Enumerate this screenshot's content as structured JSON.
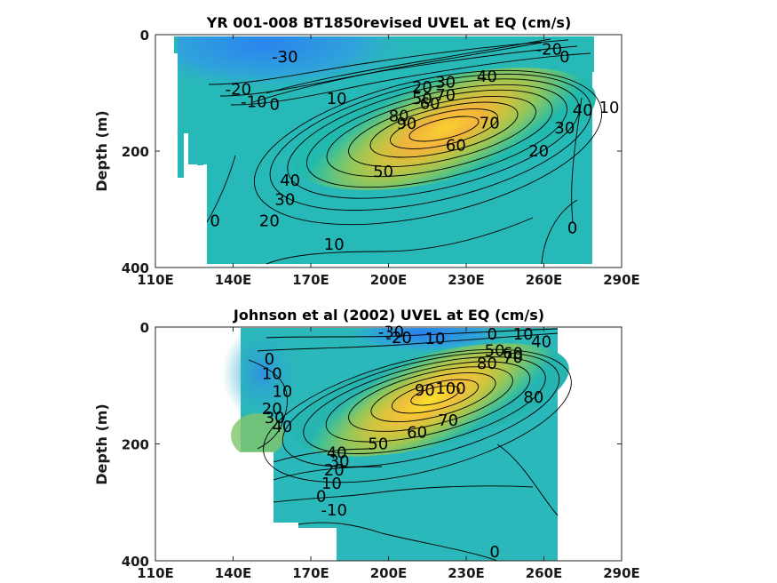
{
  "chart_data": [
    {
      "type": "contour",
      "title": "YR 001-008 BT1850revised UVEL at EQ (cm/s)",
      "xlabel": "",
      "ylabel": "Depth (m)",
      "xlim": [
        110,
        290
      ],
      "ylim": [
        400,
        0
      ],
      "xticks": [
        "110E",
        "140E",
        "170E",
        "200E",
        "230E",
        "260E",
        "290E"
      ],
      "yticks": [
        "0",
        "200",
        "400"
      ],
      "data_extent_lon": [
        117,
        280
      ],
      "core": {
        "lon": 227,
        "depth": 125,
        "value": 90
      },
      "contour_labels": [
        {
          "text": "-30",
          "lon": 160,
          "depth": 38
        },
        {
          "text": "-20",
          "lon": 142,
          "depth": 94
        },
        {
          "text": "-10",
          "lon": 148,
          "depth": 115
        },
        {
          "text": "0",
          "lon": 156,
          "depth": 120
        },
        {
          "text": "10",
          "lon": 180,
          "depth": 110
        },
        {
          "text": "20",
          "lon": 213,
          "depth": 90
        },
        {
          "text": "30",
          "lon": 222,
          "depth": 82
        },
        {
          "text": "40",
          "lon": 238,
          "depth": 72
        },
        {
          "text": "50",
          "lon": 213,
          "depth": 110
        },
        {
          "text": "60",
          "lon": 216,
          "depth": 118
        },
        {
          "text": "70",
          "lon": 222,
          "depth": 104
        },
        {
          "text": "80",
          "lon": 204,
          "depth": 140
        },
        {
          "text": "90",
          "lon": 207,
          "depth": 153
        },
        {
          "text": "70",
          "lon": 239,
          "depth": 152
        },
        {
          "text": "60",
          "lon": 226,
          "depth": 190
        },
        {
          "text": "50",
          "lon": 198,
          "depth": 235
        },
        {
          "text": "40",
          "lon": 275,
          "depth": 130
        },
        {
          "text": "30",
          "lon": 268,
          "depth": 160
        },
        {
          "text": "20",
          "lon": 258,
          "depth": 200
        },
        {
          "text": "10",
          "lon": 286,
          "depth": 125
        },
        {
          "text": "-20",
          "lon": 262,
          "depth": 25
        },
        {
          "text": "0",
          "lon": 268,
          "depth": 38
        },
        {
          "text": "40",
          "lon": 162,
          "depth": 250
        },
        {
          "text": "30",
          "lon": 160,
          "depth": 283
        },
        {
          "text": "20",
          "lon": 154,
          "depth": 320
        },
        {
          "text": "0",
          "lon": 133,
          "depth": 320
        },
        {
          "text": "10",
          "lon": 179,
          "depth": 360
        },
        {
          "text": "0",
          "lon": 271,
          "depth": 332
        }
      ]
    },
    {
      "type": "contour",
      "title": "Johnson et al (2002) UVEL at EQ (cm/s)",
      "xlabel": "",
      "ylabel": "Depth (m)",
      "xlim": [
        110,
        290
      ],
      "ylim": [
        400,
        0
      ],
      "xticks": [
        "110E",
        "140E",
        "170E",
        "200E",
        "230E",
        "260E",
        "290E"
      ],
      "yticks": [
        "0",
        "200",
        "400"
      ],
      "data_extent_lon": [
        143,
        265
      ],
      "core": {
        "lon": 215,
        "depth": 115,
        "value": 100
      },
      "contour_labels": [
        {
          "text": "-30",
          "lon": 201,
          "depth": 8
        },
        {
          "text": "-20",
          "lon": 204,
          "depth": 18
        },
        {
          "text": "10",
          "lon": 218,
          "depth": 20
        },
        {
          "text": "0",
          "lon": 240,
          "depth": 12
        },
        {
          "text": "10",
          "lon": 252,
          "depth": 12
        },
        {
          "text": "40",
          "lon": 259,
          "depth": 25
        },
        {
          "text": "50",
          "lon": 241,
          "depth": 40
        },
        {
          "text": "60",
          "lon": 248,
          "depth": 45
        },
        {
          "text": "70",
          "lon": 248,
          "depth": 52
        },
        {
          "text": "80",
          "lon": 238,
          "depth": 62
        },
        {
          "text": "90",
          "lon": 214,
          "depth": 108
        },
        {
          "text": "100",
          "lon": 224,
          "depth": 105
        },
        {
          "text": "80",
          "lon": 256,
          "depth": 120
        },
        {
          "text": "70",
          "lon": 223,
          "depth": 160
        },
        {
          "text": "60",
          "lon": 211,
          "depth": 180
        },
        {
          "text": "50",
          "lon": 196,
          "depth": 200
        },
        {
          "text": "0",
          "lon": 154,
          "depth": 55
        },
        {
          "text": "10",
          "lon": 155,
          "depth": 80
        },
        {
          "text": "10",
          "lon": 159,
          "depth": 110
        },
        {
          "text": "20",
          "lon": 155,
          "depth": 140
        },
        {
          "text": "30",
          "lon": 156,
          "depth": 155
        },
        {
          "text": "40",
          "lon": 159,
          "depth": 170
        },
        {
          "text": "40",
          "lon": 180,
          "depth": 215
        },
        {
          "text": "30",
          "lon": 181,
          "depth": 230
        },
        {
          "text": "20",
          "lon": 179,
          "depth": 245
        },
        {
          "text": "10",
          "lon": 178,
          "depth": 268
        },
        {
          "text": "0",
          "lon": 174,
          "depth": 290
        },
        {
          "text": "-10",
          "lon": 179,
          "depth": 313
        },
        {
          "text": "0",
          "lon": 241,
          "depth": 385
        }
      ]
    }
  ]
}
